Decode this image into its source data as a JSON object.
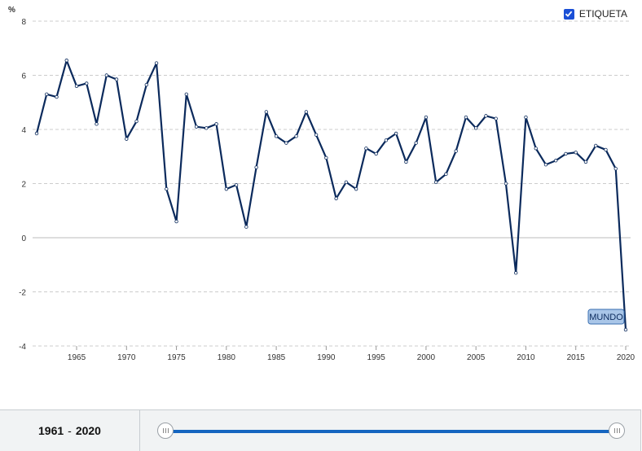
{
  "chart_data": {
    "type": "line",
    "unit_label": "%",
    "ylim": [
      -4,
      8
    ],
    "yticks": [
      -4,
      -2,
      0,
      2,
      4,
      6,
      8
    ],
    "xlim": [
      1961,
      2020
    ],
    "xticks": [
      1965,
      1970,
      1975,
      1980,
      1985,
      1990,
      1995,
      2000,
      2005,
      2010,
      2015,
      2020
    ],
    "grid": true,
    "series": [
      {
        "name": "MUNDO",
        "color": "#0b2a5c",
        "x": [
          1961,
          1962,
          1963,
          1964,
          1965,
          1966,
          1967,
          1968,
          1969,
          1970,
          1971,
          1972,
          1973,
          1974,
          1975,
          1976,
          1977,
          1978,
          1979,
          1980,
          1981,
          1982,
          1983,
          1984,
          1985,
          1986,
          1987,
          1988,
          1989,
          1990,
          1991,
          1992,
          1993,
          1994,
          1995,
          1996,
          1997,
          1998,
          1999,
          2000,
          2001,
          2002,
          2003,
          2004,
          2005,
          2006,
          2007,
          2008,
          2009,
          2010,
          2011,
          2012,
          2013,
          2014,
          2015,
          2016,
          2017,
          2018,
          2019,
          2020
        ],
        "values": [
          3.85,
          5.3,
          5.2,
          6.55,
          5.6,
          5.7,
          4.2,
          6.0,
          5.85,
          3.65,
          4.3,
          5.65,
          6.45,
          1.8,
          0.6,
          5.3,
          4.1,
          4.05,
          4.2,
          1.8,
          1.95,
          0.4,
          2.6,
          4.65,
          3.75,
          3.5,
          3.75,
          4.65,
          3.8,
          2.95,
          1.45,
          2.05,
          1.8,
          3.3,
          3.1,
          3.6,
          3.85,
          2.8,
          3.5,
          4.45,
          2.05,
          2.35,
          3.2,
          4.45,
          4.05,
          4.5,
          4.4,
          2.0,
          -1.3,
          4.45,
          3.3,
          2.7,
          2.85,
          3.1,
          3.15,
          2.8,
          3.4,
          3.25,
          2.55,
          -3.4
        ]
      }
    ],
    "end_label": "MUNDO"
  },
  "legend": {
    "label": "ETIQUETA",
    "checked": true
  },
  "range": {
    "start": "1961",
    "separator": "-",
    "end": "2020"
  },
  "colors": {
    "line": "#0b2a5c",
    "grid": "#cccccc",
    "slider": "#1565c0",
    "label_bg": "#a9c6e8",
    "label_border": "#3a6fb0"
  }
}
